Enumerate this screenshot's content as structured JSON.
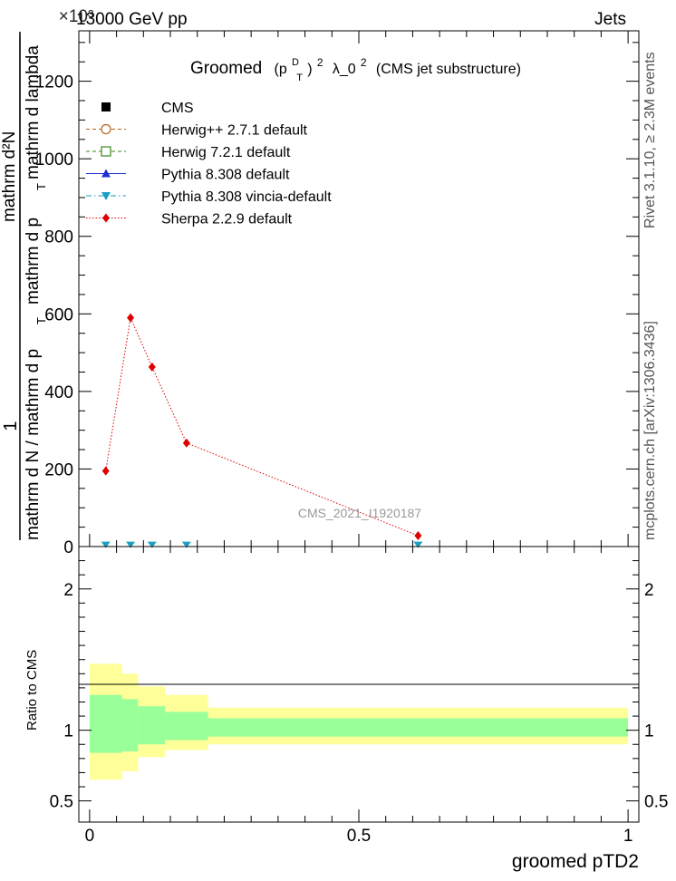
{
  "header": {
    "left": "13000 GeV pp",
    "right": "Jets",
    "exponent": "×10³"
  },
  "title": {
    "prefix": "Groomed",
    "p": "(p",
    "sup_d": "D",
    "sub_t": "T",
    "close": ")",
    "sup_2": "2",
    "mid": "λ_0",
    "sup_2b": "2",
    "suffix": "(CMS jet substructure)"
  },
  "side": {
    "rivet": "Rivet 3.1.10, ≥ 2.3M events",
    "mcplots": "mcplots.cern.ch [arXiv:1306.3436]"
  },
  "watermark": "CMS_2021_I1920187",
  "ylabel_main": {
    "one": "1",
    "denominator": "mathrm d N / mathrm d p",
    "denominator_sub": "T",
    "numerator": "mathrm d²N",
    "numerator_den": "mathrm d p",
    "numerator_den_sub": "T",
    "numerator_den_tail": "mathrm d lambda"
  },
  "ylabel_ratio": "Ratio to CMS",
  "xlabel": "groomed pTD2",
  "chart_data": {
    "type": "line",
    "xlim": [
      -0.02,
      1.02
    ],
    "main": {
      "ylim": [
        0,
        1330
      ],
      "yticks": [
        0,
        200,
        400,
        600,
        800,
        1000,
        1200
      ],
      "ytick_labels": [
        "0",
        "200",
        "400",
        "600",
        "800",
        "1000",
        "1200"
      ]
    },
    "ratio": {
      "ylim": [
        0.35,
        2.3
      ],
      "yticks": [
        0.5,
        1,
        2
      ],
      "ytick_labels": [
        "0.5",
        "1",
        "2"
      ]
    },
    "xticks": [
      0,
      0.5,
      1
    ],
    "xtick_labels": [
      "0",
      "0.5",
      "1"
    ],
    "legend": [
      {
        "label": "CMS",
        "color": "#000000",
        "marker": "square-filled",
        "line": "none"
      },
      {
        "label": "Herwig++ 2.7.1 default",
        "color": "#b5651d",
        "marker": "circle-open",
        "line": "dashed"
      },
      {
        "label": "Herwig 7.2.1 default",
        "color": "#3a8a1a",
        "marker": "square-open",
        "line": "dashed"
      },
      {
        "label": "Pythia 8.308 default",
        "color": "#1f2fd0",
        "marker": "triangle-up",
        "line": "solid"
      },
      {
        "label": "Pythia 8.308 vincia-default",
        "color": "#1aa0c0",
        "marker": "triangle-down",
        "line": "dashdot"
      },
      {
        "label": "Sherpa 2.2.9 default",
        "color": "#e00000",
        "marker": "diamond",
        "line": "dotted"
      }
    ],
    "series": [
      {
        "name": "Sherpa 2.2.9 default",
        "color": "#e00000",
        "x": [
          0.03,
          0.076,
          0.116,
          0.18,
          0.61
        ],
        "y": [
          195,
          590,
          463,
          267,
          28
        ]
      },
      {
        "name": "Pythia 8.308 vincia-default",
        "color": "#1aa0c0",
        "x": [
          0.03,
          0.076,
          0.116,
          0.18,
          0.61
        ],
        "y": [
          1,
          1,
          1,
          1,
          1
        ]
      }
    ],
    "ratio_bands": [
      {
        "x0": 0.0,
        "x1": 0.06,
        "yellow": [
          0.65,
          1.47
        ],
        "green": [
          0.84,
          1.25
        ]
      },
      {
        "x0": 0.06,
        "x1": 0.09,
        "yellow": [
          0.71,
          1.4
        ],
        "green": [
          0.85,
          1.22
        ]
      },
      {
        "x0": 0.09,
        "x1": 0.14,
        "yellow": [
          0.81,
          1.31
        ],
        "green": [
          0.9,
          1.17
        ]
      },
      {
        "x0": 0.14,
        "x1": 0.22,
        "yellow": [
          0.86,
          1.25
        ],
        "green": [
          0.93,
          1.13
        ]
      },
      {
        "x0": 0.22,
        "x1": 1.0,
        "yellow": [
          0.9,
          1.16
        ],
        "green": [
          0.955,
          1.085
        ]
      }
    ],
    "band_colors": {
      "yellow": "#ffff99",
      "green": "#99ff99"
    }
  }
}
